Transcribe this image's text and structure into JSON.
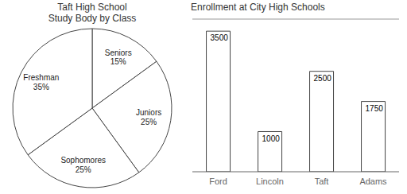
{
  "chart_data": [
    {
      "type": "pie",
      "title": "Taft High School\nStudy Body by Class",
      "categories": [
        "Seniors",
        "Juniors",
        "Sophomores",
        "Freshman"
      ],
      "values": [
        15,
        25,
        25,
        35
      ],
      "value_labels": [
        "15%",
        "25%",
        "25%",
        "35%"
      ],
      "colors": [
        "#ffffff",
        "#ffffff",
        "#ffffff",
        "#ffffff"
      ],
      "data_labels": true
    },
    {
      "type": "bar",
      "title": "Enrollment at City High Schools",
      "categories": [
        "Ford",
        "Lincoln",
        "Taft",
        "Adams"
      ],
      "values": [
        3500,
        1000,
        2500,
        1750
      ],
      "color": "#ffffff",
      "ylim": [
        0,
        3800
      ],
      "data_labels": true,
      "tick_labels": "x"
    }
  ]
}
